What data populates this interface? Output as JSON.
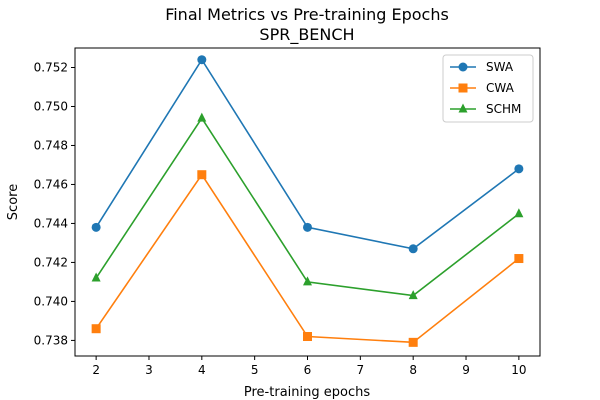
{
  "chart_data": {
    "type": "line",
    "title": "Final Metrics vs Pre-training Epochs",
    "subtitle": "SPR_BENCH",
    "xlabel": "Pre-training epochs",
    "ylabel": "Score",
    "x": [
      2,
      4,
      6,
      8,
      10
    ],
    "xlim": [
      1.6,
      10.4
    ],
    "ylim": [
      0.7372,
      0.753
    ],
    "xticks": [
      2,
      3,
      4,
      5,
      6,
      7,
      8,
      9,
      10
    ],
    "yticks": [
      0.738,
      0.74,
      0.742,
      0.744,
      0.746,
      0.748,
      0.75,
      0.752
    ],
    "grid": false,
    "legend_position": "top-right",
    "series": [
      {
        "name": "SWA",
        "color": "#1f77b4",
        "marker": "circle",
        "values": [
          0.7438,
          0.7524,
          0.7438,
          0.7427,
          0.7468
        ]
      },
      {
        "name": "CWA",
        "color": "#ff7f0e",
        "marker": "square",
        "values": [
          0.7386,
          0.7465,
          0.7382,
          0.7379,
          0.7422
        ]
      },
      {
        "name": "SCHM",
        "color": "#2ca02c",
        "marker": "triangle",
        "values": [
          0.7412,
          0.7494,
          0.741,
          0.7403,
          0.7445
        ]
      }
    ]
  }
}
